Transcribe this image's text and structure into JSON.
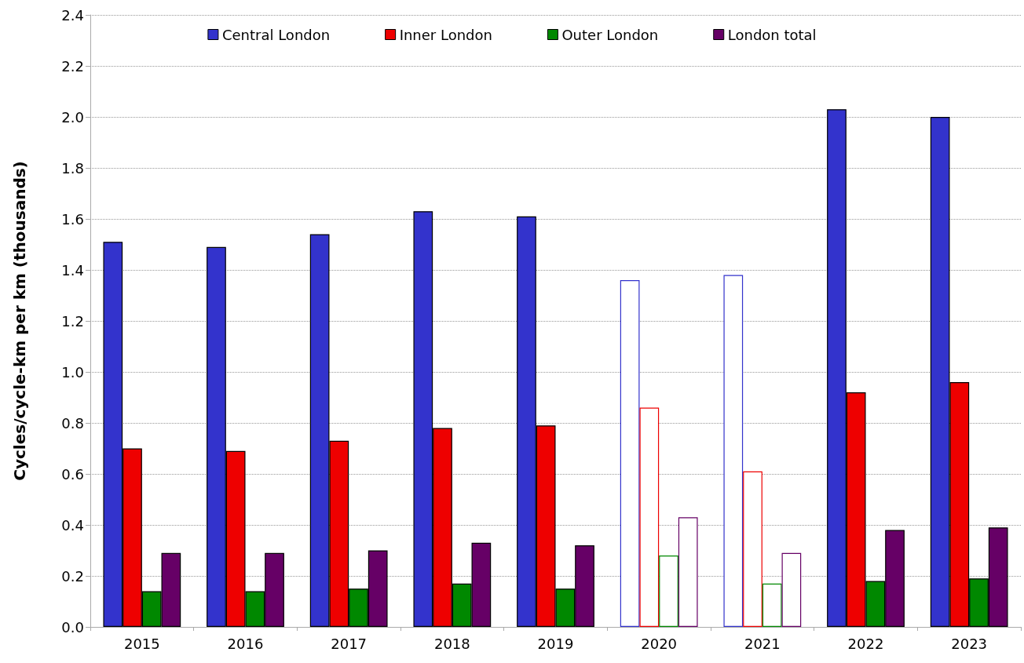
{
  "chart_data": {
    "type": "bar",
    "ylabel": "Cycles/cycle-km per km (thousands)",
    "categories": [
      "2015",
      "2016",
      "2017",
      "2018",
      "2019",
      "2020",
      "2021",
      "2022",
      "2023"
    ],
    "series": [
      {
        "name": "Central London",
        "color": "#3333cc",
        "values": [
          1.51,
          1.49,
          1.54,
          1.63,
          1.61,
          1.36,
          1.38,
          2.03,
          2.0
        ],
        "colors": [
          "#3333cc",
          "#3333cc",
          "#3333cc",
          "#3333cc",
          "#3333cc",
          "#ffffff",
          "#ffffff",
          "#3333cc",
          "#3333cc"
        ]
      },
      {
        "name": "Inner London",
        "color": "#ee0000",
        "values": [
          0.7,
          0.69,
          0.73,
          0.78,
          0.79,
          0.86,
          0.61,
          0.92,
          0.96
        ],
        "colors": [
          "#ee0000",
          "#ee0000",
          "#ee0000",
          "#ee0000",
          "#ee0000",
          "#ffffff",
          "#ffffff",
          "#ee0000",
          "#ee0000"
        ]
      },
      {
        "name": "Outer London",
        "color": "#008800",
        "values": [
          0.14,
          0.14,
          0.15,
          0.17,
          0.15,
          0.28,
          0.17,
          0.18,
          0.19
        ],
        "colors": [
          "#008800",
          "#008800",
          "#008800",
          "#008800",
          "#008800",
          "#ffffff",
          "#ffffff",
          "#008800",
          "#008800"
        ]
      },
      {
        "name": "London total",
        "color": "#660066",
        "values": [
          0.29,
          0.29,
          0.3,
          0.33,
          0.32,
          0.43,
          0.29,
          0.38,
          0.39
        ],
        "colors": [
          "#660066",
          "#660066",
          "#660066",
          "#660066",
          "#660066",
          "#ffffff",
          "#ffffff",
          "#660066",
          "#660066"
        ]
      }
    ],
    "ylim": [
      0,
      2.4
    ],
    "yticks": [
      {
        "value": 0,
        "label": "0.0"
      },
      {
        "value": 0.2,
        "label": "0.2"
      },
      {
        "value": 0.4,
        "label": "0.4"
      },
      {
        "value": 0.6,
        "label": "0.6"
      },
      {
        "value": 0.8,
        "label": "0.8"
      },
      {
        "value": 1,
        "label": "1.0"
      },
      {
        "value": 1.2,
        "label": "1.2"
      },
      {
        "value": 1.4,
        "label": "1.4"
      },
      {
        "value": 1.6,
        "label": "1.6"
      },
      {
        "value": 1.8,
        "label": "1.8"
      },
      {
        "value": 2,
        "label": "2.0"
      },
      {
        "value": 2.2,
        "label": "2.2"
      },
      {
        "value": 2.4,
        "label": "2.4"
      }
    ],
    "grid": "y",
    "legend": "top"
  }
}
